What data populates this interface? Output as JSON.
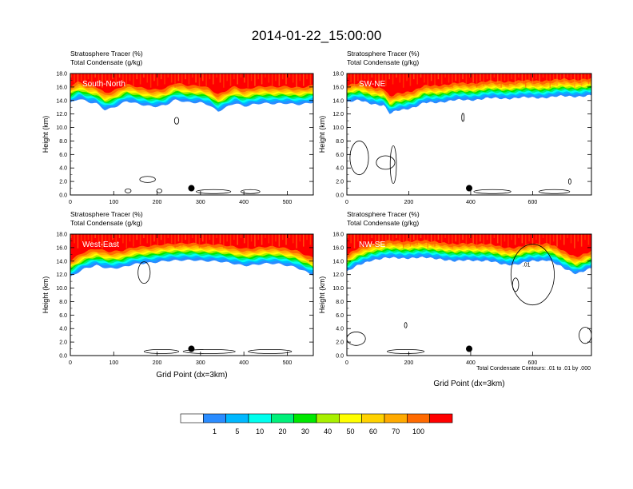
{
  "figure": {
    "title": "2014-01-22_15:00:00",
    "contour_note": "Total Condensate Contours: .01 to .01 by .000"
  },
  "colorbar": {
    "colors": [
      "#ffffff",
      "#2a8cff",
      "#00b8ff",
      "#00ffee",
      "#00f07a",
      "#00e800",
      "#a8f000",
      "#ffff00",
      "#ffd200",
      "#ffaa00",
      "#ff6a00",
      "#ff0000"
    ],
    "labels": [
      "1",
      "5",
      "10",
      "20",
      "30",
      "40",
      "50",
      "60",
      "70",
      "100"
    ]
  },
  "chart_data": [
    {
      "type": "heatmap",
      "panel_label": "South-North",
      "title_line1": "Stratosphere Tracer   (%)",
      "title_line2": "Total Condensate   (g/kg)",
      "ylabel": "Height (km)",
      "xlabel": "",
      "xlim": [
        0,
        560
      ],
      "ylim": [
        0,
        18
      ],
      "xticks": [
        0,
        100,
        200,
        300,
        400,
        500
      ],
      "yticks": [
        0.0,
        2.0,
        4.0,
        6.0,
        8.0,
        10.0,
        12.0,
        14.0,
        16.0,
        18.0
      ],
      "tracer_base_km": [
        [
          0,
          14.2
        ],
        [
          20,
          14.8
        ],
        [
          40,
          14.3
        ],
        [
          60,
          14.2
        ],
        [
          80,
          13.3
        ],
        [
          100,
          13.6
        ],
        [
          130,
          14.4
        ],
        [
          160,
          14.0
        ],
        [
          190,
          13.8
        ],
        [
          220,
          13.9
        ],
        [
          240,
          14.6
        ],
        [
          270,
          14.3
        ],
        [
          300,
          14.4
        ],
        [
          320,
          14.0
        ],
        [
          340,
          12.9
        ],
        [
          360,
          13.5
        ],
        [
          380,
          14.2
        ],
        [
          400,
          13.8
        ],
        [
          420,
          14.1
        ],
        [
          440,
          14.2
        ],
        [
          470,
          14.0
        ],
        [
          500,
          14.2
        ],
        [
          530,
          14.1
        ],
        [
          560,
          14.3
        ]
      ],
      "marker_x": 279,
      "condensate_contours": [
        {
          "cx": 178,
          "cy": 2.3,
          "rx": 18,
          "ry": 0.45
        },
        {
          "cx": 245,
          "cy": 11.0,
          "rx": 5,
          "ry": 0.5
        },
        {
          "cx": 133,
          "cy": 0.6,
          "rx": 7,
          "ry": 0.3
        },
        {
          "cx": 205,
          "cy": 0.6,
          "rx": 6,
          "ry": 0.3
        },
        {
          "cx": 330,
          "cy": 0.5,
          "rx": 40,
          "ry": 0.3
        },
        {
          "cx": 415,
          "cy": 0.5,
          "rx": 22,
          "ry": 0.3
        }
      ]
    },
    {
      "type": "heatmap",
      "panel_label": "SW-NE",
      "title_line1": "Stratosphere Tracer   (%)",
      "title_line2": "Total Condensate   (g/kg)",
      "ylabel": "Height (km)",
      "xlabel": "",
      "xlim": [
        0,
        790
      ],
      "ylim": [
        0,
        18
      ],
      "xticks": [
        0,
        200,
        400,
        600
      ],
      "yticks": [
        0.0,
        2.0,
        4.0,
        6.0,
        8.0,
        10.0,
        12.0,
        14.0,
        16.0,
        18.0
      ],
      "tracer_base_km": [
        [
          0,
          14.3
        ],
        [
          40,
          14.6
        ],
        [
          80,
          14.2
        ],
        [
          120,
          13.8
        ],
        [
          140,
          12.5
        ],
        [
          160,
          13.1
        ],
        [
          190,
          13.4
        ],
        [
          220,
          13.6
        ],
        [
          250,
          14.2
        ],
        [
          300,
          14.4
        ],
        [
          350,
          14.6
        ],
        [
          400,
          14.7
        ],
        [
          450,
          14.9
        ],
        [
          500,
          14.9
        ],
        [
          550,
          15.0
        ],
        [
          600,
          15.0
        ],
        [
          650,
          15.1
        ],
        [
          700,
          15.2
        ],
        [
          790,
          15.3
        ]
      ],
      "marker_x": 395,
      "condensate_contours": [
        {
          "cx": 40,
          "cy": 5.5,
          "rx": 30,
          "ry": 2.5
        },
        {
          "cx": 125,
          "cy": 4.8,
          "rx": 30,
          "ry": 1.0
        },
        {
          "cx": 150,
          "cy": 4.5,
          "rx": 10,
          "ry": 2.8
        },
        {
          "cx": 375,
          "cy": 11.5,
          "rx": 4,
          "ry": 0.6
        },
        {
          "cx": 720,
          "cy": 2.0,
          "rx": 4,
          "ry": 0.4
        },
        {
          "cx": 470,
          "cy": 0.5,
          "rx": 60,
          "ry": 0.3
        },
        {
          "cx": 670,
          "cy": 0.5,
          "rx": 50,
          "ry": 0.3
        }
      ]
    },
    {
      "type": "heatmap",
      "panel_label": "West-East",
      "title_line1": "Stratosphere Tracer   (%)",
      "title_line2": "Total Condensate   (g/kg)",
      "ylabel": "Height (km)",
      "xlabel": "Grid Point (dx=3km)",
      "xlim": [
        0,
        560
      ],
      "ylim": [
        0,
        18
      ],
      "xticks": [
        0,
        100,
        200,
        300,
        400,
        500
      ],
      "yticks": [
        0.0,
        2.0,
        4.0,
        6.0,
        8.0,
        10.0,
        12.0,
        14.0,
        16.0,
        18.0
      ],
      "tracer_base_km": [
        [
          0,
          12.2
        ],
        [
          30,
          13.3
        ],
        [
          60,
          14.0
        ],
        [
          90,
          13.6
        ],
        [
          120,
          13.6
        ],
        [
          150,
          14.1
        ],
        [
          180,
          14.4
        ],
        [
          210,
          14.6
        ],
        [
          250,
          14.6
        ],
        [
          290,
          14.8
        ],
        [
          330,
          14.6
        ],
        [
          360,
          14.3
        ],
        [
          400,
          14.0
        ],
        [
          440,
          14.2
        ],
        [
          480,
          14.1
        ],
        [
          520,
          13.8
        ],
        [
          560,
          12.5
        ]
      ],
      "marker_x": 279,
      "condensate_contours": [
        {
          "cx": 170,
          "cy": 12.3,
          "rx": 14,
          "ry": 1.6
        },
        {
          "cx": 210,
          "cy": 0.6,
          "rx": 40,
          "ry": 0.3
        },
        {
          "cx": 320,
          "cy": 0.6,
          "rx": 60,
          "ry": 0.3
        },
        {
          "cx": 460,
          "cy": 0.6,
          "rx": 50,
          "ry": 0.3
        }
      ]
    },
    {
      "type": "heatmap",
      "panel_label": "NW-SE",
      "title_line1": "Stratosphere Tracer   (%)",
      "title_line2": "Total Condensate   (g/kg)",
      "ylabel": "Height (km)",
      "xlabel": "Grid Point (dx=3km)",
      "xlim": [
        0,
        790
      ],
      "ylim": [
        0,
        18
      ],
      "xticks": [
        0,
        200,
        400,
        600
      ],
      "yticks": [
        0.0,
        2.0,
        4.0,
        6.0,
        8.0,
        10.0,
        12.0,
        14.0,
        16.0,
        18.0
      ],
      "tracer_base_km": [
        [
          0,
          13.0
        ],
        [
          40,
          14.0
        ],
        [
          80,
          14.8
        ],
        [
          120,
          15.0
        ],
        [
          200,
          15.1
        ],
        [
          300,
          15.0
        ],
        [
          350,
          14.5
        ],
        [
          400,
          14.8
        ],
        [
          450,
          14.6
        ],
        [
          500,
          14.2
        ],
        [
          550,
          14.1
        ],
        [
          600,
          14.6
        ],
        [
          650,
          14.8
        ],
        [
          700,
          13.5
        ],
        [
          740,
          12.8
        ],
        [
          790,
          13.5
        ]
      ],
      "marker_x": 395,
      "contour_label": ".01",
      "condensate_contours": [
        {
          "cx": 600,
          "cy": 12.0,
          "rx": 70,
          "ry": 4.5
        },
        {
          "cx": 545,
          "cy": 10.5,
          "rx": 10,
          "ry": 1.0
        },
        {
          "cx": 30,
          "cy": 2.5,
          "rx": 30,
          "ry": 1.0
        },
        {
          "cx": 770,
          "cy": 3.0,
          "rx": 20,
          "ry": 1.2
        },
        {
          "cx": 190,
          "cy": 0.6,
          "rx": 60,
          "ry": 0.3
        },
        {
          "cx": 190,
          "cy": 4.5,
          "rx": 4,
          "ry": 0.4
        }
      ]
    }
  ]
}
